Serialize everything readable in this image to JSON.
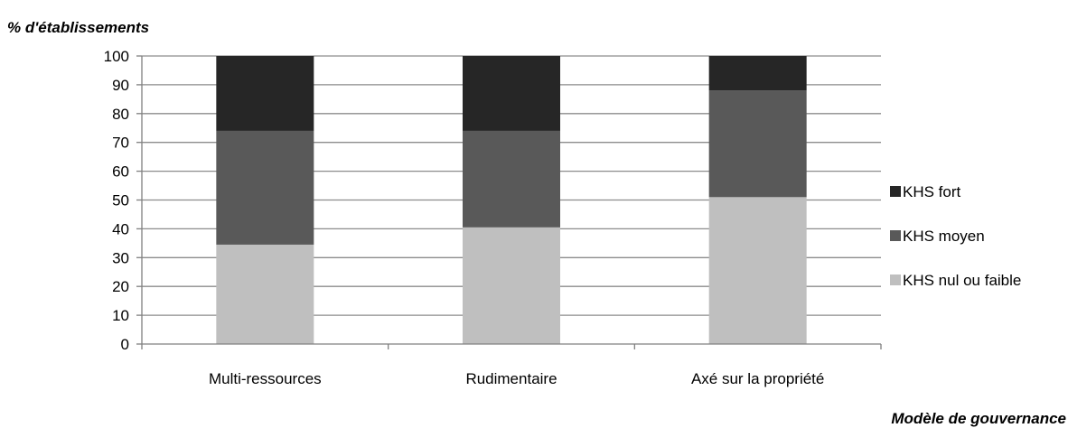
{
  "chart_data": {
    "type": "bar",
    "stacked": true,
    "title": "",
    "ylabel": "% d'établissements",
    "xlabel": "Modèle de gouvernance",
    "ylim": [
      0,
      100
    ],
    "yticks": [
      0,
      10,
      20,
      30,
      40,
      50,
      60,
      70,
      80,
      90,
      100
    ],
    "grid": true,
    "legend": "right",
    "categories": [
      "Multi-ressources",
      "Rudimentaire",
      "Axé sur la propriété"
    ],
    "series": [
      {
        "name": "KHS nul ou faible",
        "color": "#bfbfbf",
        "values": [
          34.5,
          40.5,
          51
        ]
      },
      {
        "name": "KHS moyen",
        "color": "#595959",
        "values": [
          39.5,
          33.5,
          37
        ]
      },
      {
        "name": "KHS fort",
        "color": "#262626",
        "values": [
          26,
          26,
          12
        ]
      }
    ]
  }
}
